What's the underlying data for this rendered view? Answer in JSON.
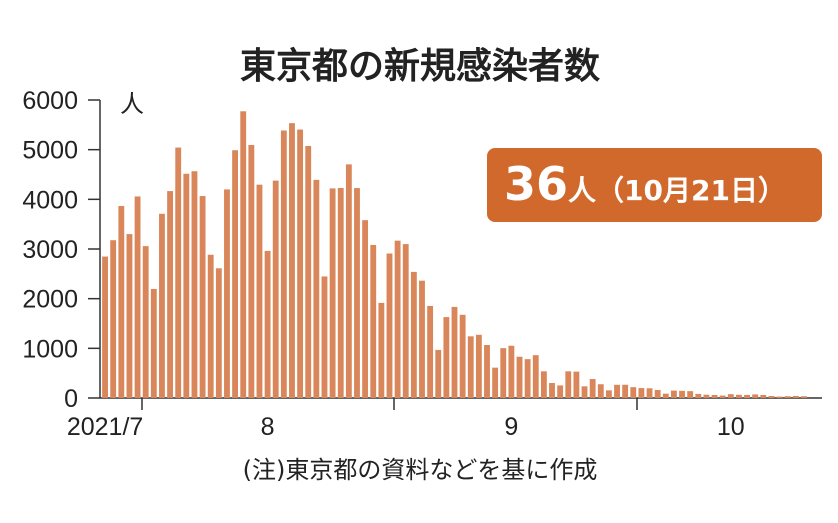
{
  "chart_data": {
    "type": "bar",
    "title": "東京都の新規感染者数",
    "y_unit": "人",
    "callout_number": "36",
    "callout_text": "人（10月21日）",
    "note": "(注)東京都の資料などを基に作成",
    "color": "#d9875a",
    "categories": [
      "2021/7",
      null,
      null,
      null,
      null,
      null,
      null,
      null,
      null,
      null,
      null,
      null,
      null,
      null,
      null,
      null,
      null,
      null,
      null,
      null,
      "8",
      null,
      null,
      null,
      null,
      null,
      null,
      null,
      null,
      null,
      null,
      null,
      null,
      null,
      null,
      null,
      null,
      null,
      null,
      null,
      null,
      null,
      null,
      null,
      null,
      null,
      null,
      null,
      null,
      null,
      "9",
      null,
      null,
      null,
      null,
      null,
      null,
      null,
      null,
      null,
      null,
      null,
      null,
      null,
      null,
      null,
      null,
      null,
      null,
      null,
      null,
      null,
      null,
      null,
      null,
      null,
      null,
      "10",
      null,
      null,
      null,
      null,
      null,
      null,
      null,
      null,
      null
    ],
    "values": [
      2848,
      3177,
      3865,
      3300,
      4058,
      3058,
      2195,
      3709,
      4166,
      5042,
      4515,
      4566,
      4066,
      2884,
      2612,
      4200,
      4989,
      5773,
      5094,
      4295,
      2962,
      4377,
      5386,
      5534,
      5405,
      5074,
      4392,
      2447,
      4220,
      4228,
      4704,
      4227,
      3581,
      3081,
      1915,
      2909,
      3168,
      3099,
      2539,
      2362,
      1853,
      968,
      1629,
      1834,
      1675,
      1242,
      1273,
      1067,
      611,
      1004,
      1052,
      831,
      782,
      862,
      537,
      302,
      253,
      537,
      531,
      235,
      382,
      277,
      154,
      266,
      267,
      218,
      200,
      196,
      161,
      87,
      149,
      144,
      138,
      82,
      66,
      60,
      49,
      77,
      65,
      62,
      72,
      60,
      40,
      29,
      36,
      41,
      36
    ],
    "ylim": [
      0,
      6000
    ],
    "yticks": [
      0,
      1000,
      2000,
      3000,
      4000,
      5000,
      6000
    ]
  }
}
